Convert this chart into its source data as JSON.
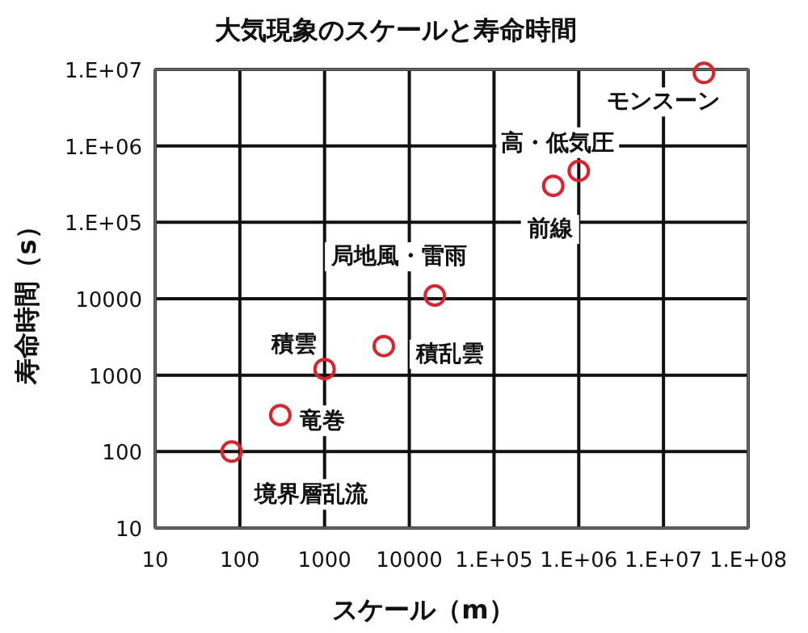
{
  "chart_data": {
    "type": "scatter",
    "title": "大気現象のスケールと寿命時間",
    "xlabel": "スケール（m）",
    "ylabel": "寿命時間（s）",
    "x": [
      30000000,
      1000000,
      500000,
      20000,
      5000,
      1000,
      300,
      80
    ],
    "series": [
      {
        "color": "#e0202a",
        "values": [
          9000000,
          470000,
          300000,
          11000,
          2400,
          1200,
          300,
          100
        ]
      }
    ],
    "log": "xy",
    "xlim": [
      10,
      100000000
    ],
    "ylim": [
      10,
      10000000
    ],
    "xticks": [
      10,
      100,
      1000,
      10000,
      {
        "value": 100000,
        "label": "1.E+05"
      },
      {
        "value": 1000000,
        "label": "1.E+06"
      },
      {
        "value": 10000000,
        "label": "1.E+07"
      },
      {
        "value": 100000000,
        "label": "1.E+08"
      }
    ],
    "yticks": [
      10,
      100,
      1000,
      10000,
      {
        "value": 100000,
        "label": "1.E+05"
      },
      {
        "value": 1000000,
        "label": "1.E+06"
      },
      {
        "value": 10000000,
        "label": "1.E+07"
      }
    ],
    "grid": true,
    "marker": "circle",
    "annotations": [
      {
        "text": "モンスーン",
        "x": 30000000,
        "y": 9000000
      },
      {
        "text": "高・低気圧",
        "x": 1000000,
        "y": 470000
      },
      {
        "text": "前線",
        "x": 500000,
        "y": 300000
      },
      {
        "text": "局地風・雷雨",
        "x": 20000,
        "y": 11000
      },
      {
        "text": "積乱雲",
        "x": 5000,
        "y": 2400
      },
      {
        "text": "積雲",
        "x": 1000,
        "y": 1200
      },
      {
        "text": "竜巻",
        "x": 300,
        "y": 300
      },
      {
        "text": "境界層乱流",
        "x": 80,
        "y": 100
      }
    ]
  }
}
